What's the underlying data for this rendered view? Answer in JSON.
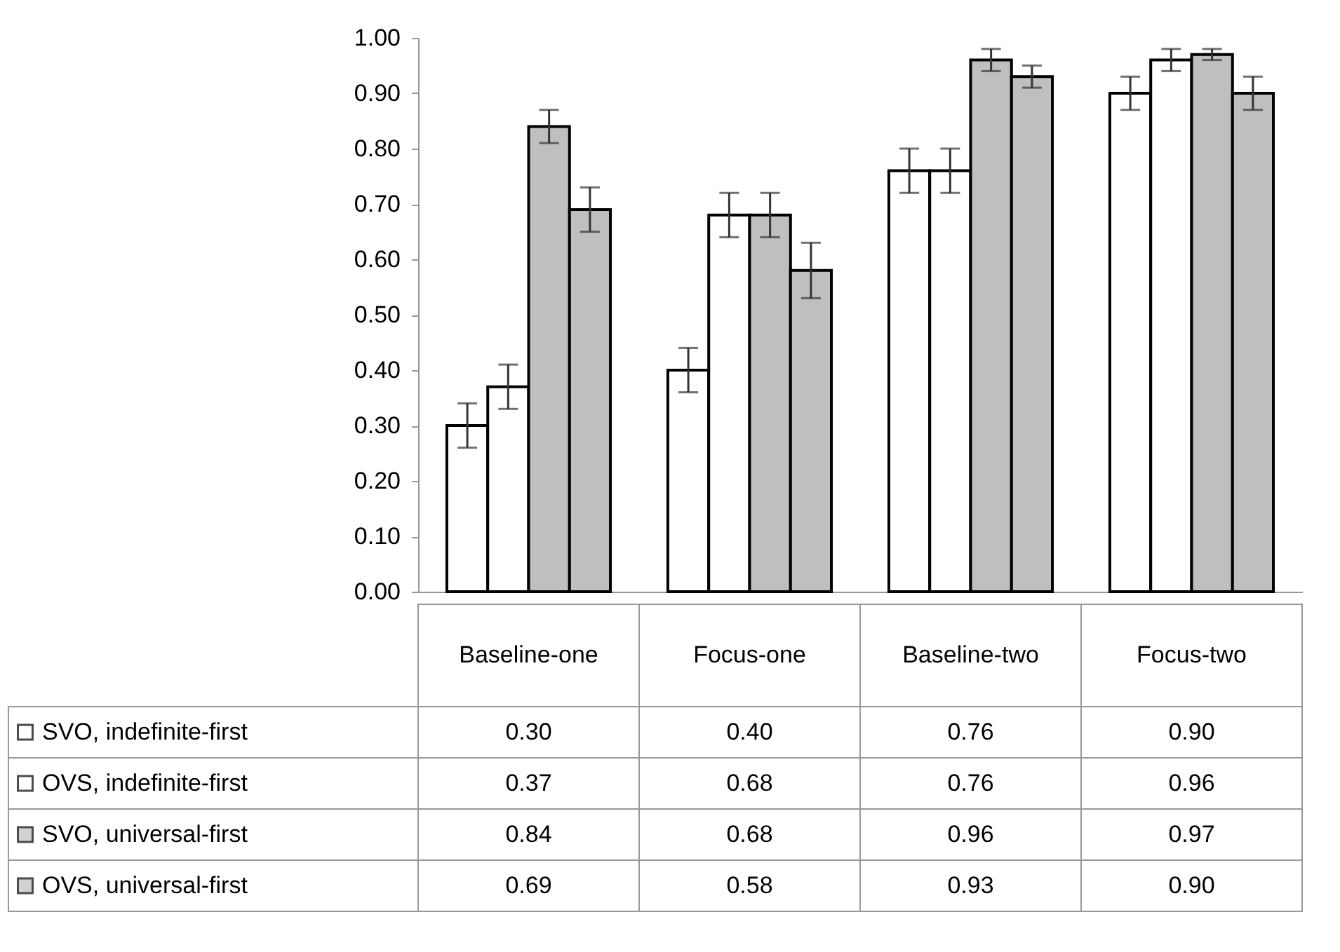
{
  "chart_data": {
    "type": "bar",
    "categories": [
      "Baseline-one",
      "Focus-one",
      "Baseline-two",
      "Focus-two"
    ],
    "series": [
      {
        "name": "SVO, indefinite-first",
        "color": "#ffffff",
        "values": [
          0.3,
          0.4,
          0.76,
          0.9
        ],
        "errors": [
          0.04,
          0.04,
          0.04,
          0.03
        ],
        "value_labels": [
          "0.30",
          "0.40",
          "0.76",
          "0.90"
        ]
      },
      {
        "name": "OVS, indefinite-first",
        "color": "#ffffff",
        "values": [
          0.37,
          0.68,
          0.76,
          0.96
        ],
        "errors": [
          0.04,
          0.04,
          0.04,
          0.02
        ],
        "value_labels": [
          "0.37",
          "0.68",
          "0.76",
          "0.96"
        ]
      },
      {
        "name": "SVO, universal-first",
        "color": "#bfbfbf",
        "values": [
          0.84,
          0.68,
          0.96,
          0.97
        ],
        "errors": [
          0.03,
          0.04,
          0.02,
          0.01
        ],
        "value_labels": [
          "0.84",
          "0.68",
          "0.96",
          "0.97"
        ]
      },
      {
        "name": "OVS, universal-first",
        "color": "#bfbfbf",
        "values": [
          0.69,
          0.58,
          0.93,
          0.9
        ],
        "errors": [
          0.04,
          0.05,
          0.02,
          0.03
        ],
        "value_labels": [
          "0.69",
          "0.58",
          "0.93",
          "0.90"
        ]
      }
    ],
    "ylim": [
      0,
      1
    ],
    "yticks": [
      {
        "value": 0,
        "label": "0.00"
      },
      {
        "value": 0.1,
        "label": "0.10"
      },
      {
        "value": 0.2,
        "label": "0.20"
      },
      {
        "value": 0.3,
        "label": "0.30"
      },
      {
        "value": 0.4,
        "label": "0.40"
      },
      {
        "value": 0.5,
        "label": "0.50"
      },
      {
        "value": 0.6,
        "label": "0.60"
      },
      {
        "value": 0.7,
        "label": "0.70"
      },
      {
        "value": 0.8,
        "label": "0.80"
      },
      {
        "value": 0.9,
        "label": "0.90"
      },
      {
        "value": 1,
        "label": "1.00"
      }
    ],
    "grid": false,
    "legend": "bottom"
  }
}
